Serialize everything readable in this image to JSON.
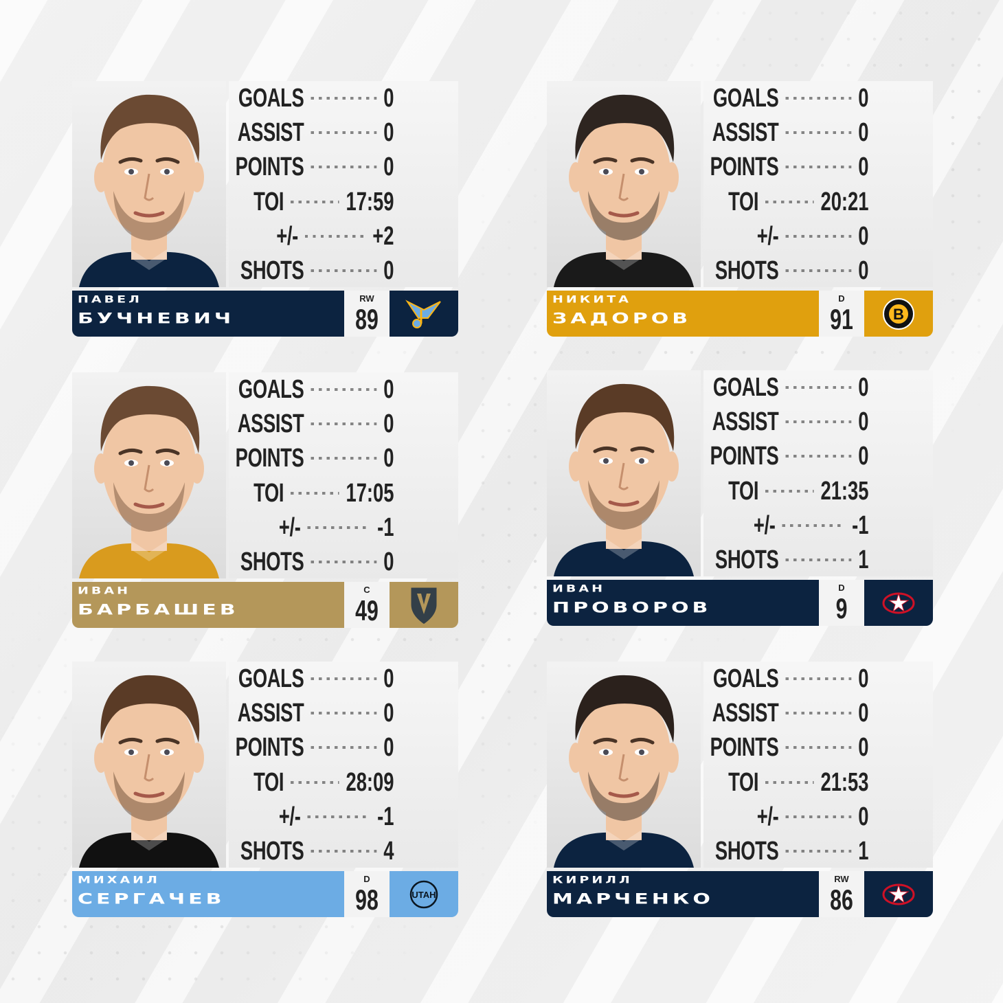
{
  "players": [
    {
      "first_name": "ПАВЕЛ",
      "last_name": "БУЧНЕВИЧ",
      "position": "RW",
      "number": "89",
      "team_logo": "st-louis-blues-logo",
      "bar_color": "#0c2340",
      "logo_bg": "#0c2340",
      "jersey_color": "#0c2340",
      "hair_color": "#6b4a33",
      "stats": [
        {
          "label": "GOALS",
          "value": "0"
        },
        {
          "label": "ASSIST",
          "value": "0"
        },
        {
          "label": "POINTS",
          "value": "0"
        },
        {
          "label": "TOI",
          "value": "17:59"
        },
        {
          "label": "+/-",
          "value": "+2"
        },
        {
          "label": "SHOTS",
          "value": "0"
        }
      ]
    },
    {
      "first_name": "НИКИТА",
      "last_name": "ЗАДОРОВ",
      "position": "D",
      "number": "91",
      "team_logo": "boston-bruins-logo",
      "bar_color": "#e0a00e",
      "logo_bg": "#e0a00e",
      "jersey_color": "#1a1a1a",
      "hair_color": "#2e2520",
      "stats": [
        {
          "label": "GOALS",
          "value": "0"
        },
        {
          "label": "ASSIST",
          "value": "0"
        },
        {
          "label": "POINTS",
          "value": "0"
        },
        {
          "label": "TOI",
          "value": "20:21"
        },
        {
          "label": "+/-",
          "value": "0"
        },
        {
          "label": "SHOTS",
          "value": "0"
        }
      ]
    },
    {
      "first_name": "ИВАН",
      "last_name": "БАРБАШЕВ",
      "position": "C",
      "number": "49",
      "team_logo": "vegas-golden-knights-logo",
      "bar_color": "#b4975a",
      "logo_bg": "#b4975a",
      "jersey_color": "#d99b1e",
      "hair_color": "#6b4a33",
      "stats": [
        {
          "label": "GOALS",
          "value": "0"
        },
        {
          "label": "ASSIST",
          "value": "0"
        },
        {
          "label": "POINTS",
          "value": "0"
        },
        {
          "label": "TOI",
          "value": "17:05"
        },
        {
          "label": "+/-",
          "value": "-1"
        },
        {
          "label": "SHOTS",
          "value": "0"
        }
      ]
    },
    {
      "first_name": "ИВАН",
      "last_name": "ПРОВОРОВ",
      "position": "D",
      "number": "9",
      "team_logo": "columbus-blue-jackets-logo",
      "bar_color": "#0c2340",
      "logo_bg": "#0c2340",
      "jersey_color": "#0c2340",
      "hair_color": "#5a3b26",
      "stats": [
        {
          "label": "GOALS",
          "value": "0"
        },
        {
          "label": "ASSIST",
          "value": "0"
        },
        {
          "label": "POINTS",
          "value": "0"
        },
        {
          "label": "TOI",
          "value": "21:35"
        },
        {
          "label": "+/-",
          "value": "-1"
        },
        {
          "label": "SHOTS",
          "value": "1"
        }
      ]
    },
    {
      "first_name": "МИХАИЛ",
      "last_name": "СЕРГАЧЕВ",
      "position": "D",
      "number": "98",
      "team_logo": "utah-hockey-club-logo",
      "logo_text": "UTAH",
      "bar_color": "#6cace4",
      "logo_bg": "#6cace4",
      "jersey_color": "#111111",
      "hair_color": "#5a3b26",
      "stats": [
        {
          "label": "GOALS",
          "value": "0"
        },
        {
          "label": "ASSIST",
          "value": "0"
        },
        {
          "label": "POINTS",
          "value": "0"
        },
        {
          "label": "TOI",
          "value": "28:09"
        },
        {
          "label": "+/-",
          "value": "-1"
        },
        {
          "label": "SHOTS",
          "value": "4"
        }
      ]
    },
    {
      "first_name": "КИРИЛЛ",
      "last_name": "МАРЧЕНКО",
      "position": "RW",
      "number": "86",
      "team_logo": "columbus-blue-jackets-logo",
      "bar_color": "#0c2340",
      "logo_bg": "#0c2340",
      "jersey_color": "#0c2340",
      "hair_color": "#2b211c",
      "stats": [
        {
          "label": "GOALS",
          "value": "0"
        },
        {
          "label": "ASSIST",
          "value": "0"
        },
        {
          "label": "POINTS",
          "value": "0"
        },
        {
          "label": "TOI",
          "value": "21:53"
        },
        {
          "label": "+/-",
          "value": "0"
        },
        {
          "label": "SHOTS",
          "value": "1"
        }
      ]
    }
  ]
}
